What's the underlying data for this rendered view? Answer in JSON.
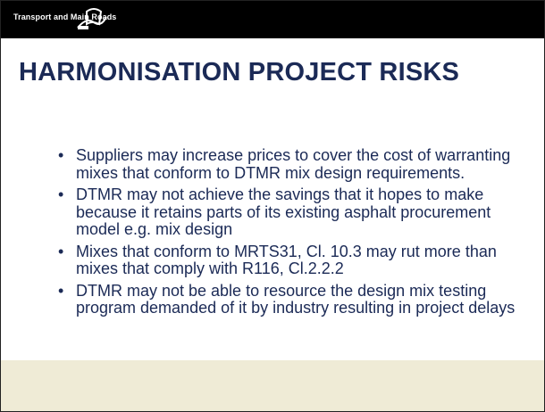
{
  "header": {
    "organisation": "Transport and Main Roads"
  },
  "title": "HARMONISATION PROJECT RISKS",
  "bullets": [
    "Suppliers may increase prices to cover the cost of warranting mixes that conform to DTMR mix design requirements.",
    "DTMR may not achieve the savings that it hopes to make because it retains parts of its existing asphalt procurement model e.g. mix design",
    "Mixes that conform to MRTS31, Cl. 10.3 may rut more than mixes that comply with R116, Cl.2.2.2",
    "DTMR may not be able to resource the design mix testing program demanded of it by industry resulting in project delays"
  ]
}
